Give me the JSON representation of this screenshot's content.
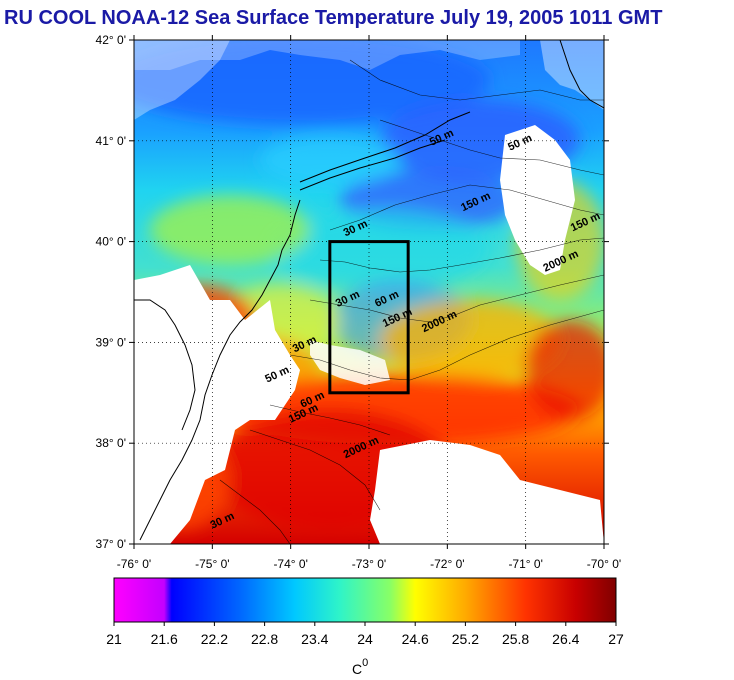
{
  "title": "RU COOL  NOAA-12 Sea Surface Temperature July 19, 2005 1011 GMT",
  "map": {
    "lon_range": [
      -76,
      -70
    ],
    "lat_range": [
      37,
      42
    ],
    "lon_ticks": [
      {
        "value": -76,
        "label": "-76° 0'"
      },
      {
        "value": -75,
        "label": "-75° 0'"
      },
      {
        "value": -74,
        "label": "-74° 0'"
      },
      {
        "value": -73,
        "label": "-73° 0'"
      },
      {
        "value": -72,
        "label": "-72° 0'"
      },
      {
        "value": -71,
        "label": "-71° 0'"
      },
      {
        "value": -70,
        "label": "-70° 0'"
      }
    ],
    "lat_ticks": [
      {
        "value": 42,
        "label": "42° 0'"
      },
      {
        "value": 41,
        "label": "41° 0'"
      },
      {
        "value": 40,
        "label": "40° 0'"
      },
      {
        "value": 39,
        "label": "39° 0'"
      },
      {
        "value": 38,
        "label": "38° 0'"
      },
      {
        "value": 37,
        "label": "37° 0'"
      }
    ],
    "study_box": {
      "lon_min": -73.5,
      "lon_max": -72.5,
      "lat_min": 38.5,
      "lat_max": 40.0
    },
    "contour_labels": [
      {
        "text": "50 m",
        "lon": -72.2,
        "lat": 40.95
      },
      {
        "text": "50 m",
        "lon": -71.2,
        "lat": 40.9
      },
      {
        "text": "150 m",
        "lon": -71.8,
        "lat": 40.3
      },
      {
        "text": "150 m",
        "lon": -70.4,
        "lat": 40.1
      },
      {
        "text": "2000 m",
        "lon": -70.75,
        "lat": 39.7
      },
      {
        "text": "30 m",
        "lon": -73.3,
        "lat": 40.05
      },
      {
        "text": "30 m",
        "lon": -73.4,
        "lat": 39.35
      },
      {
        "text": "60 m",
        "lon": -72.9,
        "lat": 39.35
      },
      {
        "text": "150 m",
        "lon": -72.8,
        "lat": 39.15
      },
      {
        "text": "2000 m",
        "lon": -72.3,
        "lat": 39.1
      },
      {
        "text": "30 m",
        "lon": -73.95,
        "lat": 38.9
      },
      {
        "text": "50 m",
        "lon": -74.3,
        "lat": 38.6
      },
      {
        "text": "60 m",
        "lon": -73.85,
        "lat": 38.35
      },
      {
        "text": "150 m",
        "lon": -74.0,
        "lat": 38.2
      },
      {
        "text": "2000 m",
        "lon": -73.3,
        "lat": 37.85
      },
      {
        "text": "30 m",
        "lon": -75.0,
        "lat": 37.15
      }
    ]
  },
  "colorbar": {
    "tick_labels": [
      "21",
      "21.6",
      "22.2",
      "22.8",
      "23.4",
      "24",
      "24.6",
      "25.2",
      "25.8",
      "26.4",
      "27"
    ],
    "unit_label": "C",
    "unit_superscript": "0",
    "colors": [
      "#ff00ff",
      "#0000ff",
      "#0066ff",
      "#00c8ff",
      "#2ff4c8",
      "#66ff66",
      "#ffff00",
      "#ffaa00",
      "#ff3300",
      "#c80000",
      "#8b0000"
    ]
  }
}
